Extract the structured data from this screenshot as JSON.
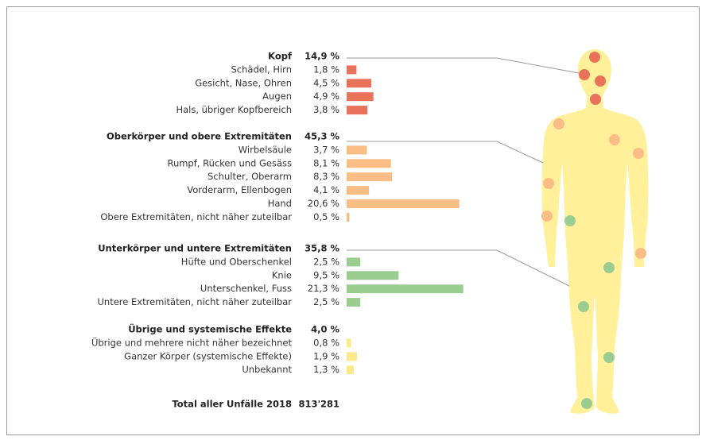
{
  "chart_data": {
    "type": "bar",
    "orientation": "horizontal",
    "groups": [
      {
        "name": "Kopf",
        "total": 14.9,
        "total_label": "14,9 %",
        "color": "#e8735a",
        "categories": [
          "Schädel, Hirn",
          "Gesicht, Nase, Ohren",
          "Augen",
          "Hals, übriger Kopfbereich"
        ],
        "values": [
          1.8,
          4.5,
          4.9,
          3.8
        ],
        "value_labels": [
          "1,8 %",
          "4,5 %",
          "4,9 %",
          "3,8 %"
        ]
      },
      {
        "name": "Oberkörper und obere Extremitäten",
        "total": 45.3,
        "total_label": "45,3 %",
        "color": "#fbbd86",
        "categories": [
          "Wirbelsäule",
          "Rumpf, Rücken und Gesäss",
          "Schulter, Oberarm",
          "Vorderarm, Ellenbogen",
          "Hand",
          "Obere Extremitäten, nicht näher zuteilbar"
        ],
        "values": [
          3.7,
          8.1,
          8.3,
          4.1,
          20.6,
          0.5
        ],
        "value_labels": [
          "3,7 %",
          "8,1 %",
          "8,3 %",
          "4,1 %",
          "20,6 %",
          "0,5 %"
        ]
      },
      {
        "name": "Unterkörper und untere Extremitäten",
        "total": 35.8,
        "total_label": "35,8 %",
        "color": "#9bcc90",
        "categories": [
          "Hüfte und Oberschenkel",
          "Knie",
          "Unterschenkel, Fuss",
          "Untere Extremitäten, nicht näher zuteilbar"
        ],
        "values": [
          2.5,
          9.5,
          21.3,
          2.5
        ],
        "value_labels": [
          "2,5 %",
          "9,5 %",
          "21,3 %",
          "2,5 %"
        ]
      },
      {
        "name": "Übrige und systemische Effekte",
        "total": 4.0,
        "total_label": "4,0 %",
        "color": "#fce98c",
        "categories": [
          "Übrige und mehrere nicht näher bezeichnet",
          "Ganzer Körper (systemische Effekte)",
          "Unbekannt"
        ],
        "values": [
          0.8,
          1.9,
          1.3
        ],
        "value_labels": [
          "0,8 %",
          "1,9 %",
          "1,3 %"
        ]
      }
    ],
    "total_name": "Total aller Unfälle 2018",
    "total_value": 813281,
    "total_value_label": "813'281"
  }
}
